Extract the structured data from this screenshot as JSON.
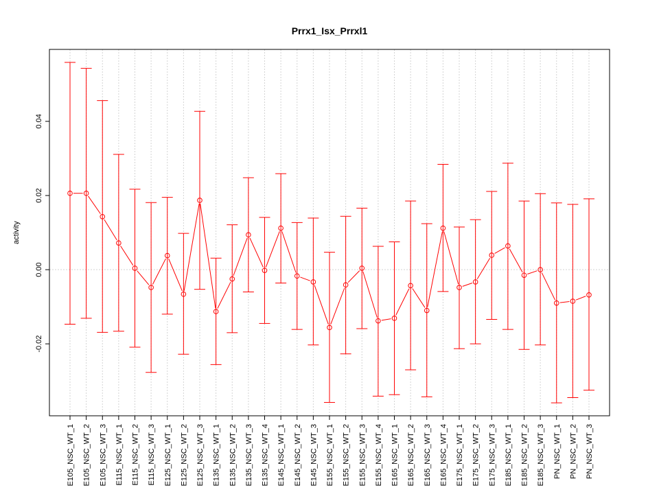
{
  "chart_data": {
    "type": "line",
    "title": "Prrx1_Isx_Prrxl1",
    "xlabel": "",
    "ylabel": "activity",
    "ylim": [
      -0.0394,
      0.0594
    ],
    "yticks": [
      -0.02,
      0.0,
      0.02,
      0.04
    ],
    "ytick_labels": [
      "-0.02",
      "0.00",
      "0.02",
      "0.04"
    ],
    "grid": true,
    "color": "#ff0000",
    "categories": [
      "E105_NSC_WT_1",
      "E105_NSC_WT_2",
      "E105_NSC_WT_3",
      "E115_NSC_WT_1",
      "E115_NSC_WT_2",
      "E115_NSC_WT_3",
      "E125_NSC_WT_1",
      "E125_NSC_WT_2",
      "E125_NSC_WT_3",
      "E135_NSC_WT_1",
      "E135_NSC_WT_2",
      "E135_NSC_WT_3",
      "E135_NSC_WT_4",
      "E145_NSC_WT_1",
      "E145_NSC_WT_2",
      "E145_NSC_WT_3",
      "E155_NSC_WT_1",
      "E155_NSC_WT_2",
      "E155_NSC_WT_3",
      "E155_NSC_WT_4",
      "E165_NSC_WT_1",
      "E165_NSC_WT_2",
      "E165_NSC_WT_3",
      "E165_NSC_WT_4",
      "E175_NSC_WT_1",
      "E175_NSC_WT_2",
      "E175_NSC_WT_3",
      "E185_NSC_WT_1",
      "E185_NSC_WT_2",
      "E185_NSC_WT_3",
      "PN_NSC_WT_1",
      "PN_NSC_WT_2",
      "PN_NSC_WT_3"
    ],
    "values": [
      0.0206,
      0.0206,
      0.0143,
      0.0072,
      0.0004,
      -0.0048,
      0.0038,
      -0.0066,
      0.0187,
      -0.0113,
      -0.0025,
      0.0094,
      -0.0002,
      0.0112,
      -0.0017,
      -0.0033,
      -0.0156,
      -0.0041,
      0.0004,
      -0.0138,
      -0.0131,
      -0.0043,
      -0.011,
      0.0112,
      -0.0048,
      -0.0033,
      0.0039,
      0.0064,
      -0.0015,
      0.0,
      -0.009,
      -0.0085,
      -0.0068
    ],
    "upper": [
      0.0559,
      0.0543,
      0.0456,
      0.0311,
      0.0217,
      0.0181,
      0.0195,
      0.0098,
      0.0427,
      0.0031,
      0.0121,
      0.0248,
      0.0141,
      0.0259,
      0.0127,
      0.0139,
      0.0047,
      0.0144,
      0.0166,
      0.0063,
      0.0075,
      0.0185,
      0.0124,
      0.0284,
      0.0115,
      0.0135,
      0.0211,
      0.0287,
      0.0185,
      0.0205,
      0.018,
      0.0176,
      0.0191
    ],
    "lower": [
      -0.0147,
      -0.0131,
      -0.0169,
      -0.0166,
      -0.0209,
      -0.0277,
      -0.012,
      -0.0228,
      -0.0053,
      -0.0256,
      -0.017,
      -0.006,
      -0.0145,
      -0.0036,
      -0.0161,
      -0.0203,
      -0.0358,
      -0.0227,
      -0.0159,
      -0.0341,
      -0.0337,
      -0.027,
      -0.0343,
      -0.0059,
      -0.0213,
      -0.02,
      -0.0134,
      -0.0161,
      -0.0215,
      -0.0203,
      -0.0359,
      -0.0345,
      -0.0325
    ]
  }
}
